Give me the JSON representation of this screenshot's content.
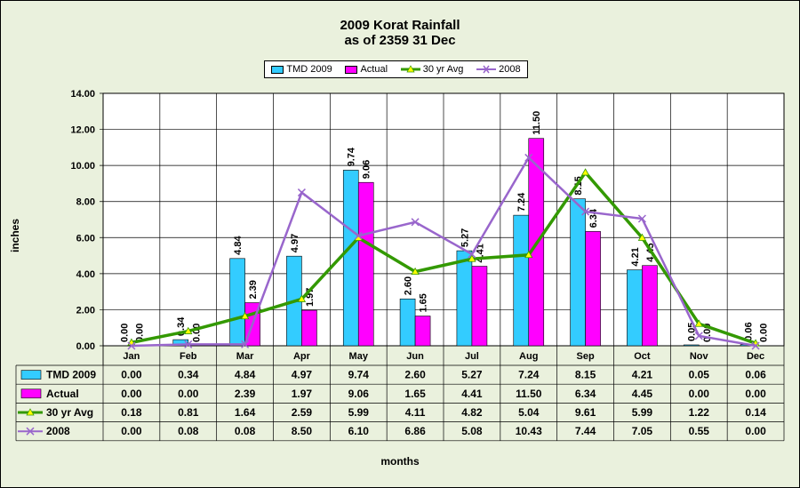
{
  "chart_data": {
    "type": "bar",
    "title": [
      "2009 Korat Rainfall",
      "as of 2359 31 Dec"
    ],
    "xlabel": "months",
    "ylabel": "inches",
    "ylim": [
      0,
      14
    ],
    "yticks": [
      "0.00",
      "2.00",
      "4.00",
      "6.00",
      "8.00",
      "10.00",
      "12.00",
      "14.00"
    ],
    "categories": [
      "Jan",
      "Feb",
      "Mar",
      "Apr",
      "May",
      "Jun",
      "Jul",
      "Aug",
      "Sep",
      "Oct",
      "Nov",
      "Dec"
    ],
    "series": [
      {
        "name": "TMD 2009",
        "kind": "bar",
        "color": "#33ccff",
        "marker": "",
        "values": [
          0.0,
          0.34,
          4.84,
          4.97,
          9.74,
          2.6,
          5.27,
          7.24,
          8.15,
          4.21,
          0.05,
          0.06
        ],
        "labels": [
          "0.00",
          "0.34",
          "4.84",
          "4.97",
          "9.74",
          "2.60",
          "5.27",
          "7.24",
          "8.15",
          "4.21",
          "0.05",
          "0.06"
        ]
      },
      {
        "name": "Actual",
        "kind": "bar",
        "color": "#ff00ff",
        "marker": "",
        "values": [
          0.0,
          0.0,
          2.39,
          1.97,
          9.06,
          1.65,
          4.41,
          11.5,
          6.34,
          4.45,
          0.0,
          0.0
        ],
        "labels": [
          "0.00",
          "0.00",
          "2.39",
          "1.97",
          "9.06",
          "1.65",
          "4.41",
          "11.50",
          "6.34",
          "4.45",
          "0.00",
          "0.00"
        ]
      },
      {
        "name": "30 yr Avg",
        "kind": "line",
        "color": "#339900",
        "marker": "triangle",
        "marker_color": "#ffff00",
        "values": [
          0.18,
          0.81,
          1.64,
          2.59,
          5.99,
          4.11,
          4.82,
          5.04,
          9.61,
          5.99,
          1.22,
          0.14
        ],
        "labels": [
          "0.18",
          "0.81",
          "1.64",
          "2.59",
          "5.99",
          "4.11",
          "4.82",
          "5.04",
          "9.61",
          "5.99",
          "1.22",
          "0.14"
        ]
      },
      {
        "name": "2008",
        "kind": "line",
        "color": "#9966cc",
        "marker": "x",
        "marker_color": "#9966cc",
        "values": [
          0.0,
          0.08,
          0.08,
          8.5,
          6.1,
          6.86,
          5.08,
          10.43,
          7.44,
          7.05,
          0.55,
          0.0
        ],
        "labels": [
          "0.00",
          "0.08",
          "0.08",
          "8.50",
          "6.10",
          "6.86",
          "5.08",
          "10.43",
          "7.44",
          "7.05",
          "0.55",
          "0.00"
        ]
      }
    ],
    "data_table": true,
    "legend": "top-center",
    "grid": true,
    "colors": {
      "background": "#eaf1dd",
      "plot_area": "#ffffff",
      "grid": "#000000"
    }
  }
}
